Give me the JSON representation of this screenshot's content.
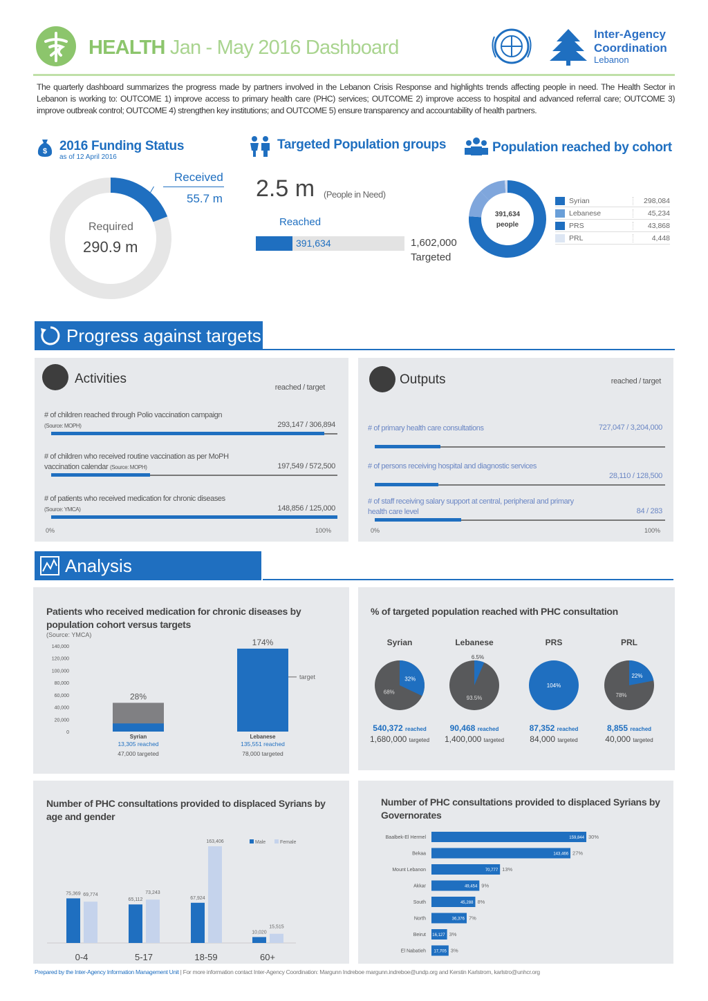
{
  "header": {
    "title_bold": "HEALTH",
    "title_rest": "Jan - May 2016 Dashboard",
    "org_line1": "Inter-Agency",
    "org_line2": "Coordination",
    "org_line3": "Lebanon",
    "accent_green": "#8cc56c",
    "accent_blue": "#1f6fc0"
  },
  "intro": "The quarterly dashboard summarizes the progress made by partners involved in the Lebanon Crisis Response and highlights trends affecting people in need. The Health Sector in Lebanon is working to: OUTCOME 1) improve access to primary health care (PHC) services; OUTCOME 2) improve access to hospital and advanced referral care; OUTCOME 3) improve outbreak control; OUTCOME 4) strengthen key institutions; and OUTCOME 5) ensure transparency and accountability of health partners.",
  "funding": {
    "title": "2016 Funding Status",
    "subtitle": "as of 12 April 2016",
    "received_label": "Received",
    "received_value": "55.7 m",
    "required_label": "Required",
    "required_value": "290.9 m",
    "received_m": 55.7,
    "required_m": 290.9
  },
  "targeted": {
    "title": "Targeted Population groups",
    "pin_value": "2.5 m",
    "pin_label": "(People in Need)",
    "reached_label": "Reached",
    "reached_value": "391,634",
    "targeted_value": "1,602,000",
    "targeted_label": "Targeted",
    "reached_num": 391634,
    "targeted_num": 1602000
  },
  "cohort": {
    "title": "Population reached by cohort",
    "center_value": "391,634",
    "center_label": "people",
    "rows": [
      {
        "name": "Syrian",
        "value": "298,084",
        "num": 298084,
        "color": "#1f6fc0"
      },
      {
        "name": "Lebanese",
        "value": "45,234",
        "num": 45234,
        "color": "#6a9fd8"
      },
      {
        "name": "PRS",
        "value": "43,868",
        "num": 43868,
        "color": "#1f6fc0"
      },
      {
        "name": "PRL",
        "value": "4,448",
        "num": 4448,
        "color": "#dde6f3"
      }
    ]
  },
  "progress": {
    "title": "Progress against targets",
    "activities": {
      "title": "Activities",
      "col_header": "reached / target",
      "axis_min": "0%",
      "axis_max": "100%",
      "items": [
        {
          "label": "# of children reached through Polio vaccination campaign",
          "source": "(Source: MOPH)",
          "value": "293,147 / 306,894",
          "fraction": 0.955
        },
        {
          "label": "# of children who received routine vaccination as per MoPH vaccination calendar",
          "source": "(Source: MOPH)",
          "value": "197,549 / 572,500",
          "fraction": 0.345
        },
        {
          "label": "# of patients who received medication for chronic diseases",
          "source": "(Source: YMCA)",
          "value": "148,856 / 125,000",
          "fraction": 1.0
        }
      ]
    },
    "outputs": {
      "title": "Outputs",
      "col_header": "reached / target",
      "axis_min": "0%",
      "axis_max": "100%",
      "items": [
        {
          "label": "# of primary health care consultations",
          "value": "727,047 / 3,204,000",
          "fraction": 0.227
        },
        {
          "label": "# of persons receiving hospital and diagnostic services",
          "value": "28,110 / 128,500",
          "fraction": 0.219
        },
        {
          "label": "# of staff receiving salary support at central, peripheral and primary health care level",
          "value": "84 / 283",
          "fraction": 0.297
        }
      ]
    }
  },
  "analysis": {
    "title": "Analysis"
  },
  "chart_data": [
    {
      "type": "bar",
      "title": "Patients who received medication for chronic diseases by population cohort versus targets",
      "subtitle": "(Source: YMCA)",
      "categories": [
        "Syrian",
        "Lebanese"
      ],
      "reached": [
        13305,
        135551
      ],
      "targeted": [
        47000,
        78000
      ],
      "reached_labels": [
        "13,305 reached",
        "135,551 reached"
      ],
      "targeted_labels": [
        "47,000 targeted",
        "78,000 targeted"
      ],
      "percent_labels": [
        "28%",
        "174%"
      ],
      "target_marker_label": "target",
      "yticks": [
        "140,000",
        "120,000",
        "100,000",
        "80,000",
        "60,000",
        "40,000",
        "20,000",
        "0"
      ],
      "ylim": [
        0,
        140000
      ]
    },
    {
      "type": "pie",
      "title": "% of targeted population reached with PHC consultation",
      "groups": [
        {
          "name": "Syrian",
          "reached_pct": 32,
          "reached_label": "32%",
          "rest_label": "68%",
          "reached": "540,372",
          "targeted": "1,680,000"
        },
        {
          "name": "Lebanese",
          "reached_pct": 6.5,
          "reached_label": "6.5%",
          "rest_label": "93.5%",
          "reached": "90,468",
          "targeted": "1,400,000"
        },
        {
          "name": "PRS",
          "reached_pct": 104,
          "reached_label": "104%",
          "rest_label": "",
          "reached": "87,352",
          "targeted": "84,000"
        },
        {
          "name": "PRL",
          "reached_pct": 22,
          "reached_label": "22%",
          "rest_label": "78%",
          "reached": "8,855",
          "targeted": "40,000"
        }
      ],
      "reached_word": "reached",
      "targeted_word": "targeted",
      "colors": {
        "reached": "#1f6fc0",
        "rest": "#58595b"
      }
    },
    {
      "type": "bar",
      "title": "Number of PHC consultations provided to displaced Syrians by age and gender",
      "categories": [
        "0-4",
        "5-17",
        "18-59",
        "60+"
      ],
      "series": [
        {
          "name": "Male",
          "values": [
            75369,
            65112,
            67924,
            10020
          ],
          "labels": [
            "75,369",
            "65,112",
            "67,924",
            "10,020"
          ],
          "color": "#1f6fc0"
        },
        {
          "name": "Female",
          "values": [
            69774,
            73243,
            163406,
            15515
          ],
          "labels": [
            "69,774",
            "73,243",
            "163,406",
            "15,515"
          ],
          "color": "#c5d3ec"
        }
      ],
      "legend": "top-right"
    },
    {
      "type": "bar",
      "orientation": "horizontal",
      "title": "Number of PHC consultations provided to displaced Syrians by Governorates",
      "categories": [
        "Baalbek-El Hermel",
        "Bekaa",
        "Mount Lebanon",
        "Akkar",
        "South",
        "North",
        "Beirut",
        "El Nabatieh"
      ],
      "values": [
        159844,
        143466,
        70777,
        49454,
        45288,
        36376,
        16127,
        17705
      ],
      "value_labels": [
        "159,844",
        "143,466",
        "70,777",
        "49,454",
        "45,288",
        "36,376",
        "16,127",
        "17,705"
      ],
      "percent_labels": [
        "30%",
        "27%",
        "13%",
        "9%",
        "8%",
        "7%",
        "3%",
        "3%"
      ]
    }
  ],
  "footer": {
    "prepared": "Prepared by the Inter-Agency Information Management Unit",
    "contact": "| For more information contact Inter-Agency Coordination: Margunn Indreboe margunn.indreboe@undp.org and Kerstin Karlstrom, karlstro@unhcr.org"
  }
}
